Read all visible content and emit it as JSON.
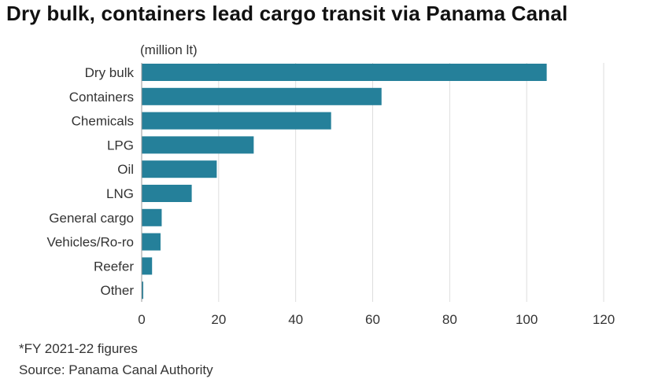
{
  "title": "Dry bulk, containers lead cargo transit via Panama Canal",
  "unit_label": "(million lt)",
  "footnote": "*FY 2021-22 figures",
  "source": "Source: Panama Canal Authority",
  "colors": {
    "bar": "#25809a",
    "grid": "#dddddd",
    "axis": "#9a9a9a"
  },
  "chart_data": {
    "type": "bar",
    "orientation": "horizontal",
    "title": "Dry bulk, containers lead cargo transit via Panama Canal",
    "xlabel": "(million lt)",
    "ylabel": "",
    "xlim": [
      0,
      120
    ],
    "xticks": [
      0,
      20,
      40,
      60,
      80,
      100,
      120
    ],
    "grid": true,
    "categories": [
      "Dry bulk",
      "Containers",
      "Chemicals",
      "LPG",
      "Oil",
      "LNG",
      "General cargo",
      "Vehicles/Ro-ro",
      "Reefer",
      "Other"
    ],
    "values": [
      105.2,
      62.3,
      49.2,
      29.1,
      19.5,
      13.0,
      5.2,
      4.9,
      2.7,
      0.4
    ]
  }
}
